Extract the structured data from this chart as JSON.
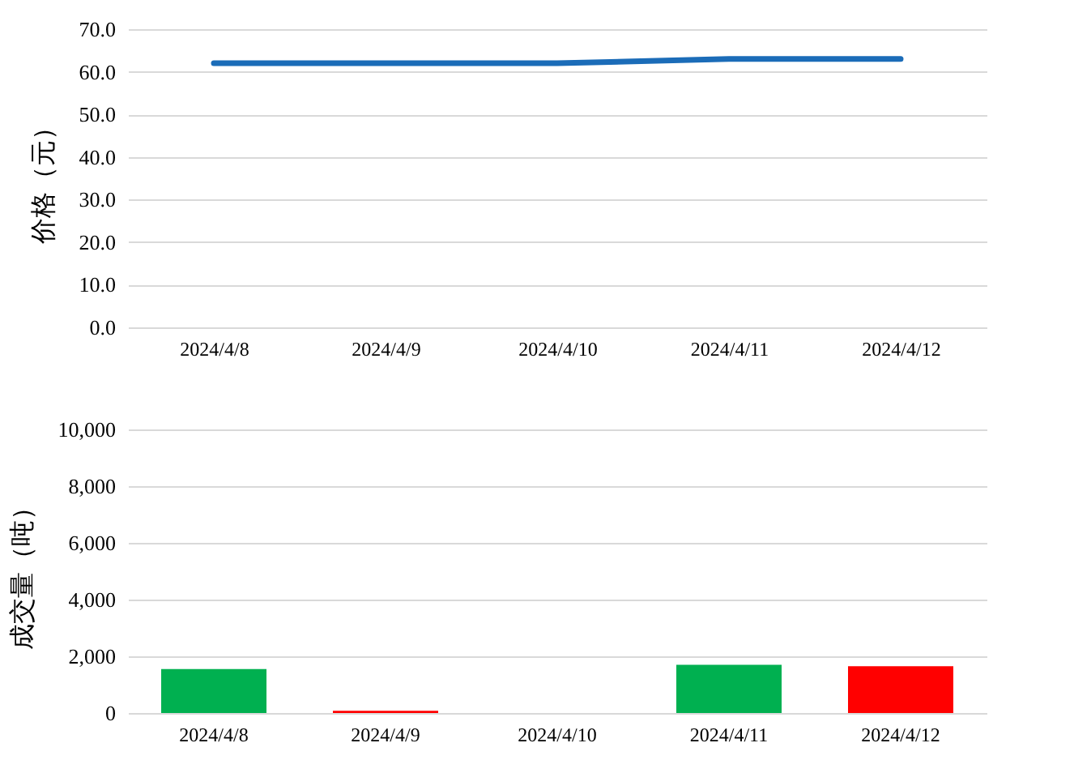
{
  "chart_data": [
    {
      "type": "line",
      "ylabel": "价格（元）",
      "categories": [
        "2024/4/8",
        "2024/4/9",
        "2024/4/10",
        "2024/4/11",
        "2024/4/12"
      ],
      "series": [
        {
          "color": "#1b6cb8",
          "values": [
            62.0,
            62.0,
            62.0,
            63.0,
            63.0
          ]
        }
      ],
      "ylim": [
        0,
        70
      ],
      "yticks": [
        {
          "value": 0,
          "label": "0.0"
        },
        {
          "value": 10,
          "label": "10.0"
        },
        {
          "value": 20,
          "label": "20.0"
        },
        {
          "value": 30,
          "label": "30.0"
        },
        {
          "value": 40,
          "label": "40.0"
        },
        {
          "value": 50,
          "label": "50.0"
        },
        {
          "value": 60,
          "label": "60.0"
        },
        {
          "value": 70,
          "label": "70.0"
        }
      ],
      "grid": "y",
      "marker": "none",
      "line_style": "solid"
    },
    {
      "type": "bar",
      "ylabel": "成交量（吨）",
      "categories": [
        "2024/4/8",
        "2024/4/9",
        "2024/4/10",
        "2024/4/11",
        "2024/4/12"
      ],
      "values": [
        1550,
        80,
        0,
        1700,
        1650
      ],
      "colors": [
        "#00b050",
        "#ff0000",
        "#ff0000",
        "#00b050",
        "#ff0000"
      ],
      "ylim": [
        0,
        10000
      ],
      "yticks": [
        0,
        {
          "value": 2000,
          "label": "2,000"
        },
        {
          "value": 4000,
          "label": "4,000"
        },
        {
          "value": 6000,
          "label": "6,000"
        },
        {
          "value": 8000,
          "label": "8,000"
        },
        {
          "value": 10000,
          "label": "10,000"
        }
      ],
      "grid": "y"
    }
  ]
}
